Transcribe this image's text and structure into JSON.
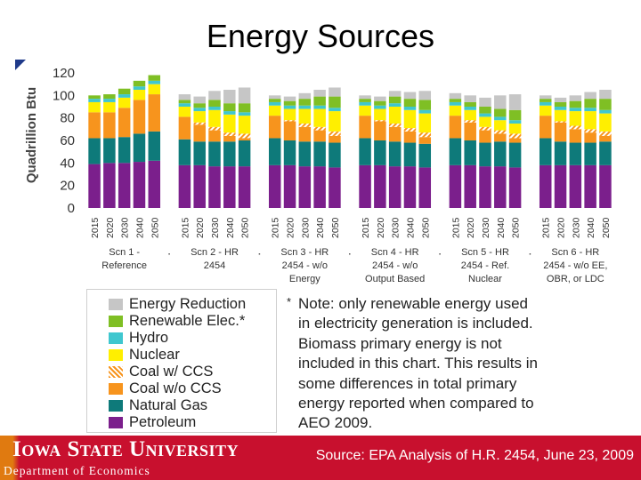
{
  "slide": {
    "title": "Energy Sources",
    "note_star": "*",
    "note_lines": [
      "Note: only renewable energy used",
      "in electricity generation is included.",
      "Biomass primary energy is not",
      "included in this chart.  This results in",
      "some differences in total primary",
      "energy reported when compared to",
      "AEO 2009."
    ],
    "footer": {
      "university": "Iowa State University",
      "department": "Department of Economics",
      "source": "Source: EPA Analysis of H.R. 2454, June 23, 2009"
    }
  },
  "chart_data": {
    "type": "bar",
    "stacked": true,
    "ylabel": "Quadrillion Btu",
    "ylim": [
      0,
      120
    ],
    "yticks": [
      0,
      20,
      40,
      60,
      80,
      100,
      120
    ],
    "grid": false,
    "years": [
      "2015",
      "2020",
      "2030",
      "2040",
      "2050"
    ],
    "groups": [
      {
        "label_lines": [
          "Scn 1 -",
          "Reference"
        ]
      },
      {
        "label_lines": [
          "Scn 2 - HR",
          "2454"
        ]
      },
      {
        "label_lines": [
          "Scn 3 - HR",
          "2454 - w/o",
          "Energy"
        ]
      },
      {
        "label_lines": [
          "Scn 4 - HR",
          "2454 - w/o",
          "Output Based"
        ]
      },
      {
        "label_lines": [
          "Scn 5 - HR",
          "2454 - Ref.",
          "Nuclear"
        ]
      },
      {
        "label_lines": [
          "Scn 6 - HR",
          "2454 - w/o EE,",
          "OBR, or LDC"
        ]
      }
    ],
    "series": [
      {
        "name": "Petroleum",
        "color": "#7b1f8c",
        "pattern": "solid",
        "values": [
          [
            39,
            40,
            40,
            41,
            42
          ],
          [
            38,
            38,
            37,
            37,
            37
          ],
          [
            38,
            38,
            37,
            37,
            36
          ],
          [
            38,
            38,
            37,
            37,
            36
          ],
          [
            38,
            38,
            37,
            37,
            36
          ],
          [
            38,
            38,
            38,
            38,
            38
          ]
        ]
      },
      {
        "name": "Natural Gas",
        "color": "#0e7a7a",
        "pattern": "solid",
        "values": [
          [
            23,
            22,
            23,
            25,
            26
          ],
          [
            23,
            21,
            22,
            22,
            23
          ],
          [
            24,
            22,
            22,
            22,
            22
          ],
          [
            24,
            22,
            22,
            21,
            21
          ],
          [
            24,
            22,
            21,
            22,
            22
          ],
          [
            24,
            21,
            20,
            20,
            21
          ]
        ]
      },
      {
        "name": "Coal w/o CCS",
        "color": "#f7941d",
        "pattern": "solid",
        "values": [
          [
            23,
            23,
            26,
            30,
            33
          ],
          [
            20,
            15,
            10,
            5,
            2
          ],
          [
            20,
            17,
            13,
            10,
            6
          ],
          [
            20,
            17,
            13,
            10,
            6
          ],
          [
            20,
            16,
            11,
            7,
            4
          ],
          [
            20,
            17,
            12,
            9,
            5
          ]
        ]
      },
      {
        "name": "Coal w/ CCS",
        "color": "#f7941d",
        "pattern": "hatch",
        "values": [
          [
            0,
            0,
            0,
            0,
            0
          ],
          [
            0,
            2,
            3,
            3,
            4
          ],
          [
            0,
            1,
            3,
            3,
            4
          ],
          [
            0,
            1,
            3,
            3,
            4
          ],
          [
            0,
            2,
            3,
            3,
            4
          ],
          [
            0,
            1,
            3,
            3,
            4
          ]
        ]
      },
      {
        "name": "Nuclear",
        "color": "#ffef00",
        "pattern": "solid",
        "values": [
          [
            9,
            9,
            9,
            9,
            9
          ],
          [
            9,
            10,
            15,
            16,
            16
          ],
          [
            9,
            10,
            13,
            16,
            18
          ],
          [
            9,
            10,
            15,
            16,
            17
          ],
          [
            9,
            9,
            9,
            9,
            9
          ],
          [
            9,
            10,
            13,
            16,
            16
          ]
        ]
      },
      {
        "name": "Hydro",
        "color": "#3fc7cf",
        "pattern": "solid",
        "values": [
          [
            3,
            3,
            3,
            3,
            3
          ],
          [
            3,
            3,
            3,
            3,
            3
          ],
          [
            3,
            3,
            3,
            3,
            3
          ],
          [
            3,
            3,
            3,
            3,
            3
          ],
          [
            3,
            3,
            3,
            3,
            3
          ],
          [
            3,
            3,
            3,
            3,
            3
          ]
        ]
      },
      {
        "name": "Renewable Elec.*",
        "color": "#7fbf24",
        "pattern": "solid",
        "values": [
          [
            3,
            4,
            5,
            5,
            5
          ],
          [
            3,
            4,
            6,
            7,
            8
          ],
          [
            3,
            4,
            6,
            8,
            10
          ],
          [
            3,
            4,
            6,
            7,
            9
          ],
          [
            3,
            4,
            6,
            7,
            9
          ],
          [
            3,
            4,
            6,
            8,
            10
          ]
        ]
      },
      {
        "name": "Energy Reduction",
        "color": "#c6c6c6",
        "pattern": "solid",
        "values": [
          [
            0,
            0,
            0,
            0,
            0
          ],
          [
            5,
            6,
            8,
            12,
            14
          ],
          [
            3,
            4,
            5,
            6,
            8
          ],
          [
            3,
            4,
            5,
            6,
            8
          ],
          [
            5,
            6,
            8,
            12,
            14
          ],
          [
            3,
            4,
            5,
            6,
            8
          ]
        ]
      }
    ]
  }
}
